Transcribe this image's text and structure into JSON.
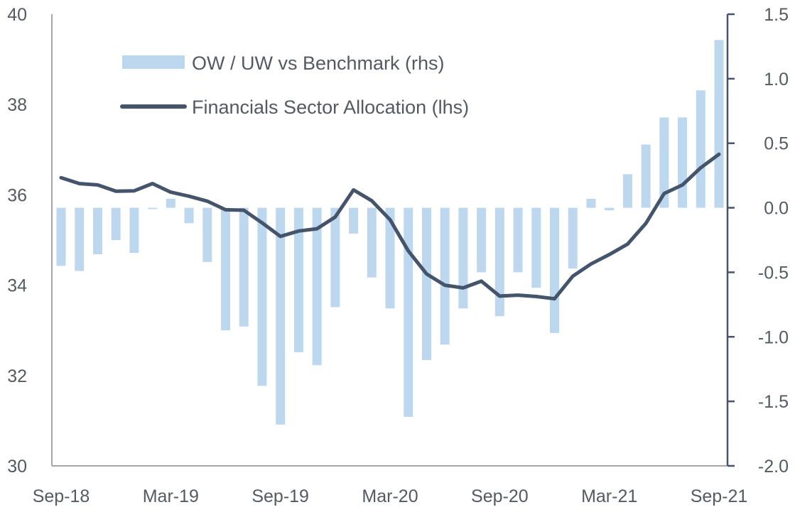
{
  "chart_data": {
    "type": "bar+line",
    "title": "",
    "xlabel": "",
    "ylabel_left": "",
    "ylabel_right": "",
    "x_tick_labels": [
      "Sep-18",
      "Mar-19",
      "Sep-19",
      "Mar-20",
      "Sep-20",
      "Mar-21",
      "Sep-21"
    ],
    "left_axis": {
      "range": [
        30,
        40
      ],
      "ticks": [
        "30",
        "32",
        "34",
        "36",
        "38",
        "40"
      ]
    },
    "right_axis": {
      "range": [
        -2.0,
        1.5
      ],
      "ticks": [
        "-2.0",
        "-1.5",
        "-1.0",
        "-0.5",
        "0.0",
        "0.5",
        "1.0",
        "1.5"
      ]
    },
    "grid": false,
    "legend_position": "top-left",
    "x": [
      "Sep-18",
      "Oct-18",
      "Nov-18",
      "Dec-18",
      "Jan-19",
      "Feb-19",
      "Mar-19",
      "Apr-19",
      "May-19",
      "Jun-19",
      "Jul-19",
      "Aug-19",
      "Sep-19",
      "Oct-19",
      "Nov-19",
      "Dec-19",
      "Jan-20",
      "Feb-20",
      "Mar-20",
      "Apr-20",
      "May-20",
      "Jun-20",
      "Jul-20",
      "Aug-20",
      "Sep-20",
      "Oct-20",
      "Nov-20",
      "Dec-20",
      "Jan-21",
      "Feb-21",
      "Mar-21",
      "Apr-21",
      "May-21",
      "Jun-21",
      "Jul-21",
      "Aug-21",
      "Sep-21"
    ],
    "series": [
      {
        "name": "OW / UW vs Benchmark (rhs)",
        "type": "bar",
        "axis": "right",
        "color": "#bdd7ee",
        "values": [
          -0.45,
          -0.49,
          -0.36,
          -0.25,
          -0.35,
          -0.01,
          0.07,
          -0.12,
          -0.42,
          -0.95,
          -0.92,
          -1.38,
          -1.68,
          -1.12,
          -1.22,
          -0.77,
          -0.2,
          -0.54,
          -0.78,
          -1.62,
          -1.18,
          -1.06,
          -0.78,
          -0.5,
          -0.84,
          -0.5,
          -0.62,
          -0.97,
          -0.47,
          0.07,
          -0.02,
          0.26,
          0.49,
          0.7,
          0.7,
          0.91,
          1.3
        ]
      },
      {
        "name": "Financials Sector Allocation (lhs)",
        "type": "line",
        "axis": "left",
        "color": "#44546a",
        "values": [
          36.38,
          36.25,
          36.22,
          36.08,
          36.09,
          36.25,
          36.06,
          35.97,
          35.86,
          35.67,
          35.66,
          35.38,
          35.08,
          35.2,
          35.25,
          35.51,
          36.11,
          35.87,
          35.45,
          34.76,
          34.25,
          34.0,
          33.94,
          34.09,
          33.76,
          33.78,
          33.75,
          33.7,
          34.2,
          34.47,
          34.68,
          34.91,
          35.37,
          36.03,
          36.22,
          36.6,
          36.9
        ]
      }
    ]
  },
  "legend": {
    "bar_label": "OW / UW vs Benchmark (rhs)",
    "line_label": "Financials Sector Allocation (lhs)"
  },
  "colors": {
    "bar": "#bdd7ee",
    "line": "#44546a",
    "left_axis": "#a6a6a6",
    "right_axis": "#44546a",
    "text": "#555a60"
  }
}
